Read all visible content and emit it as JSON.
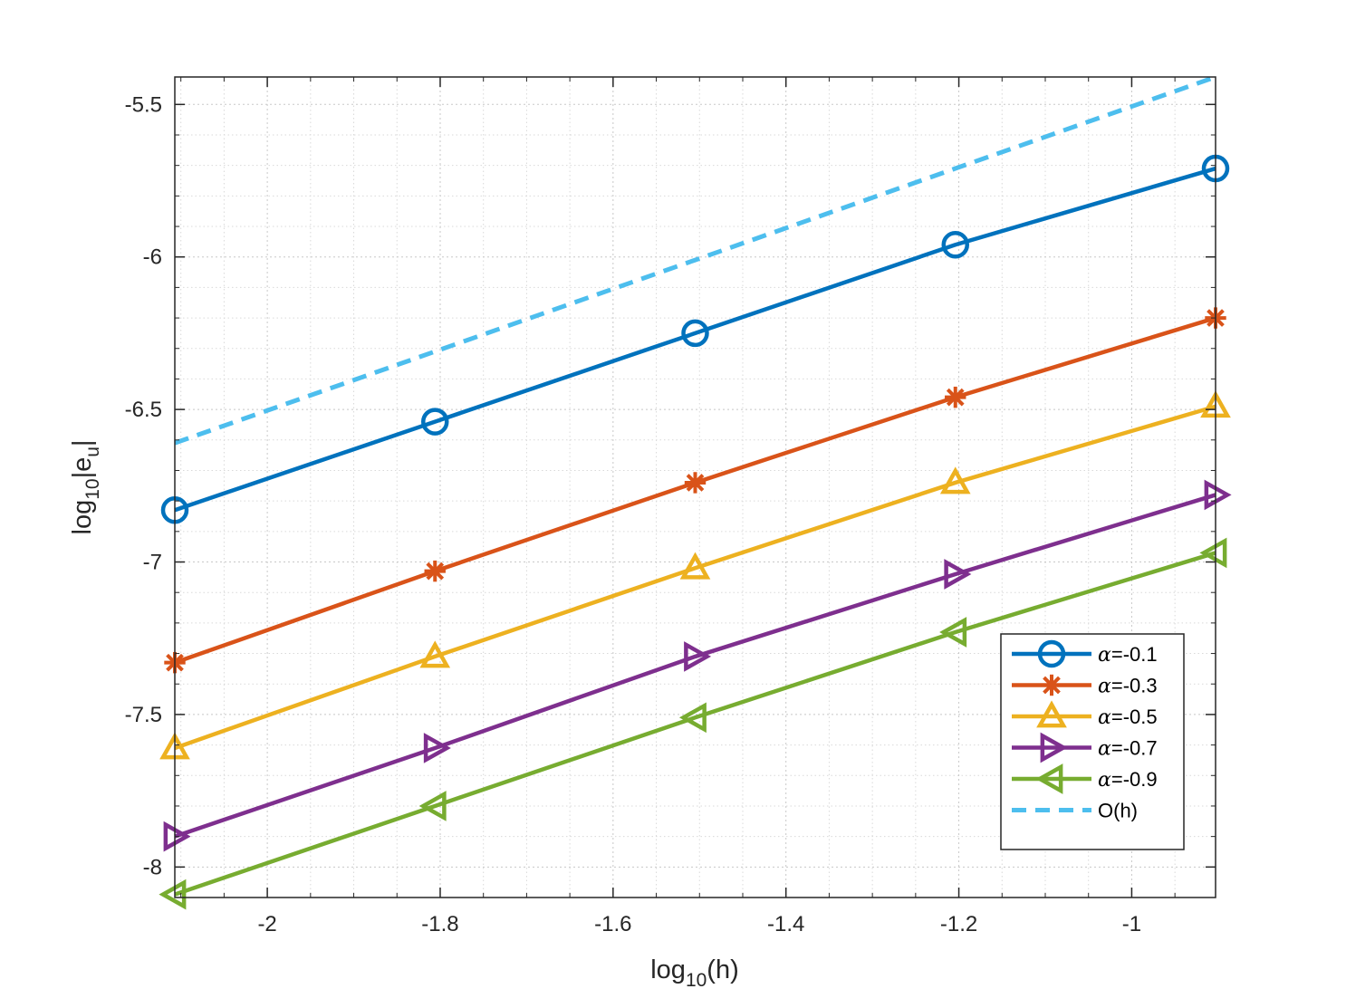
{
  "chart_data": {
    "type": "line",
    "title": "",
    "xlabel": {
      "base": "log",
      "sub": "10",
      "rest": "(h)"
    },
    "ylabel": {
      "base": "log",
      "sub": "10",
      "rest": "|e",
      "sub2": "u",
      "end": "|"
    },
    "xlim": [
      -2.107,
      -0.903
    ],
    "ylim": [
      -8.1,
      -5.41
    ],
    "xticks": [
      -2,
      -1.8,
      -1.6,
      -1.4,
      -1.2,
      -1
    ],
    "xtick_labels": [
      "-2",
      "-1.8",
      "-1.6",
      "-1.4",
      "-1.2",
      "-1"
    ],
    "yticks": [
      -8,
      -7.5,
      -7,
      -6.5,
      -6,
      -5.5
    ],
    "ytick_labels": [
      "-8",
      "-7.5",
      "-7",
      "-6.5",
      "-6",
      "-5.5"
    ],
    "grid": true,
    "minor_grid": true,
    "legend_position": "bottom-right",
    "x": [
      -2.107,
      -1.806,
      -1.505,
      -1.204,
      -0.903
    ],
    "series": [
      {
        "name": "α=-0.1",
        "greek": "α",
        "label_rest": "=-0.1",
        "color": "#0072BD",
        "marker": "circle",
        "style": "solid",
        "values": [
          -6.83,
          -6.54,
          -6.25,
          -5.96,
          -5.71
        ]
      },
      {
        "name": "α=-0.3",
        "greek": "α",
        "label_rest": "=-0.3",
        "color": "#D95319",
        "marker": "asterisk",
        "style": "solid",
        "values": [
          -7.33,
          -7.03,
          -6.74,
          -6.46,
          -6.2
        ]
      },
      {
        "name": "α=-0.5",
        "greek": "α",
        "label_rest": "=-0.5",
        "color": "#EDB120",
        "marker": "triangle-up",
        "style": "solid",
        "values": [
          -7.61,
          -7.31,
          -7.02,
          -6.74,
          -6.49
        ]
      },
      {
        "name": "α=-0.7",
        "greek": "α",
        "label_rest": "=-0.7",
        "color": "#7E2F8E",
        "marker": "triangle-right",
        "style": "solid",
        "values": [
          -7.9,
          -7.61,
          -7.31,
          -7.04,
          -6.78
        ]
      },
      {
        "name": "α=-0.9",
        "greek": "α",
        "label_rest": "=-0.9",
        "color": "#77AC30",
        "marker": "triangle-left",
        "style": "solid",
        "values": [
          -8.09,
          -7.8,
          -7.51,
          -7.23,
          -6.97
        ]
      },
      {
        "name": "O(h)",
        "greek": "",
        "label_rest": "O(h)",
        "color": "#4DBEEE",
        "marker": "none",
        "style": "dashed",
        "values": [
          -6.61,
          -6.31,
          -6.01,
          -5.71,
          -5.41
        ]
      }
    ]
  }
}
